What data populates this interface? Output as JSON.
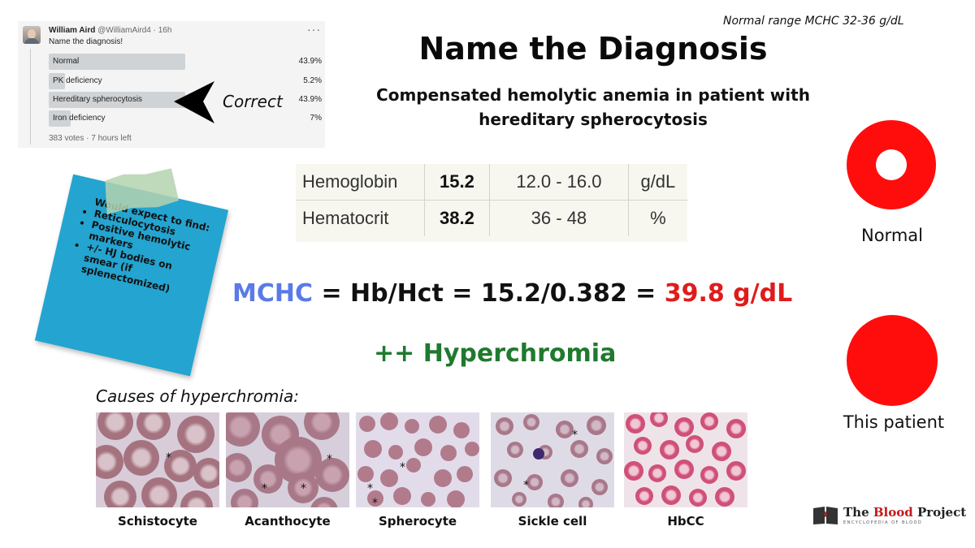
{
  "tweet": {
    "name": "William Aird",
    "handle": "@WilliamAird4 · 16h",
    "more": "···",
    "text": "Name the diagnosis!",
    "poll": [
      {
        "label": "Normal",
        "pct": "43.9%",
        "fill": 0.439
      },
      {
        "label": "PK deficiency",
        "pct": "5.2%",
        "fill": 0.052
      },
      {
        "label": "Hereditary spherocytosis",
        "pct": "43.9%",
        "fill": 0.439
      },
      {
        "label": "Iron deficiency",
        "pct": "7%",
        "fill": 0.07
      }
    ],
    "footer": "383 votes · 7 hours left"
  },
  "arrow_label": "Correct",
  "normal_range": "Normal range MCHC 32-36 g/dL",
  "title": "Name the Diagnosis",
  "subtitle_line1": "Compensated hemolytic anemia in patient with",
  "subtitle_line2": "hereditary spherocytosis",
  "labs": [
    {
      "name": "Hemoglobin",
      "value": "15.2",
      "range": "12.0 - 16.0",
      "unit": "g/dL"
    },
    {
      "name": "Hematocrit",
      "value": "38.2",
      "range": "36 - 48",
      "unit": "%"
    }
  ],
  "equation": {
    "mchc": "MCHC",
    "middle": " = Hb/Hct = 15.2/0.382 = ",
    "result": "39.8 g/dL"
  },
  "hyperchromia": "++ Hyperchromia",
  "note": {
    "heading": "Would expect to find:",
    "items": [
      "Reticulocytosis",
      "Positive hemolytic markers",
      "+/- HJ bodies on smear (if splenectomized)"
    ]
  },
  "causes_title": "Causes of hyperchromia:",
  "causes": [
    "Schistocyte",
    "Acanthocyte",
    "Spherocyte",
    "Sickle cell",
    "HbCC"
  ],
  "rbc_labels": {
    "normal": "Normal",
    "patient": "This patient"
  },
  "logo": {
    "name_part1": "The ",
    "name_part2": "Blood",
    "name_part3": " Project",
    "tagline": "ENCYCLOPEDIA OF BLOOD"
  },
  "colors": {
    "mchc_blue": "#5b7ae8",
    "result_red": "#e01b1b",
    "hyper_green": "#1f7a2e",
    "rbc_red": "#ff0d0d",
    "note_blue": "#24a4d0"
  }
}
